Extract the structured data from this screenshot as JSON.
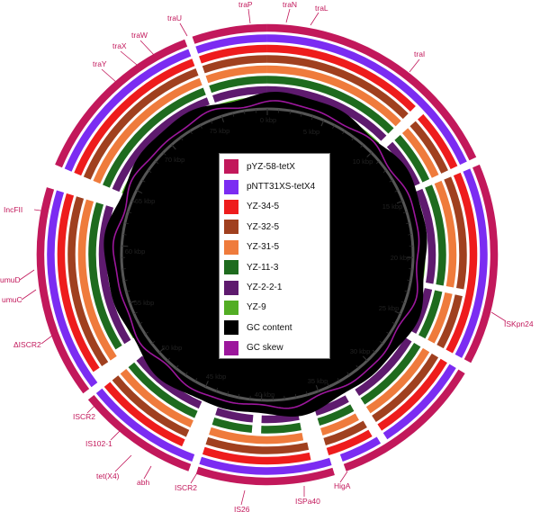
{
  "figure": {
    "tracks": [
      {
        "name": "pYZ-58-tetX",
        "color": "#c2185b"
      },
      {
        "name": "pNTT31XS-tetX4",
        "color": "#7b2cf2"
      },
      {
        "name": "YZ-34-5",
        "color": "#ee1c1c"
      },
      {
        "name": "YZ-32-5",
        "color": "#a0401f"
      },
      {
        "name": "YZ-31-5",
        "color": "#ef7b3c"
      },
      {
        "name": "YZ-11-3",
        "color": "#1e6b1e"
      },
      {
        "name": "YZ-2-2-1",
        "color": "#5e1a6e"
      },
      {
        "name": "YZ-9",
        "color": "#52ad24"
      }
    ],
    "gc_content": {
      "name": "GC content",
      "color": "#000000"
    },
    "gc_skew": {
      "name": "GC skew",
      "color": "#9c179c"
    },
    "backbone_color": "#555555",
    "total_kbp": 79,
    "scale_labels": [
      {
        "kbp": 0,
        "label": "0 kbp"
      },
      {
        "kbp": 5,
        "label": "5 kbp"
      },
      {
        "kbp": 10,
        "label": "10 kbp"
      },
      {
        "kbp": 15,
        "label": "15 kbp"
      },
      {
        "kbp": 20,
        "label": "20 kbp"
      },
      {
        "kbp": 25,
        "label": "25 kbp"
      },
      {
        "kbp": 30,
        "label": "30 kbp"
      },
      {
        "kbp": 35,
        "label": "35 kbp"
      },
      {
        "kbp": 40,
        "label": "40 kbp"
      },
      {
        "kbp": 45,
        "label": "45 kbp"
      },
      {
        "kbp": 50,
        "label": "50 kbp"
      },
      {
        "kbp": 55,
        "label": "55 kbp"
      },
      {
        "kbp": 60,
        "label": "60 kbp"
      },
      {
        "kbp": 65,
        "label": "65 kbp"
      },
      {
        "kbp": 70,
        "label": "70 kbp"
      },
      {
        "kbp": 75,
        "label": "75 kbp"
      }
    ],
    "gene_labels": [
      "traU",
      "traP",
      "traN",
      "traL",
      "traW",
      "traX",
      "traY",
      "traI",
      "IncFII",
      "umuD",
      "umuC",
      "ΔISCR2",
      "ISCR2",
      "IS102-1",
      "tet(X4)",
      "abh",
      "ISCR2",
      "IS26",
      "ISPa40",
      "HigA",
      "ISKpn24"
    ]
  }
}
